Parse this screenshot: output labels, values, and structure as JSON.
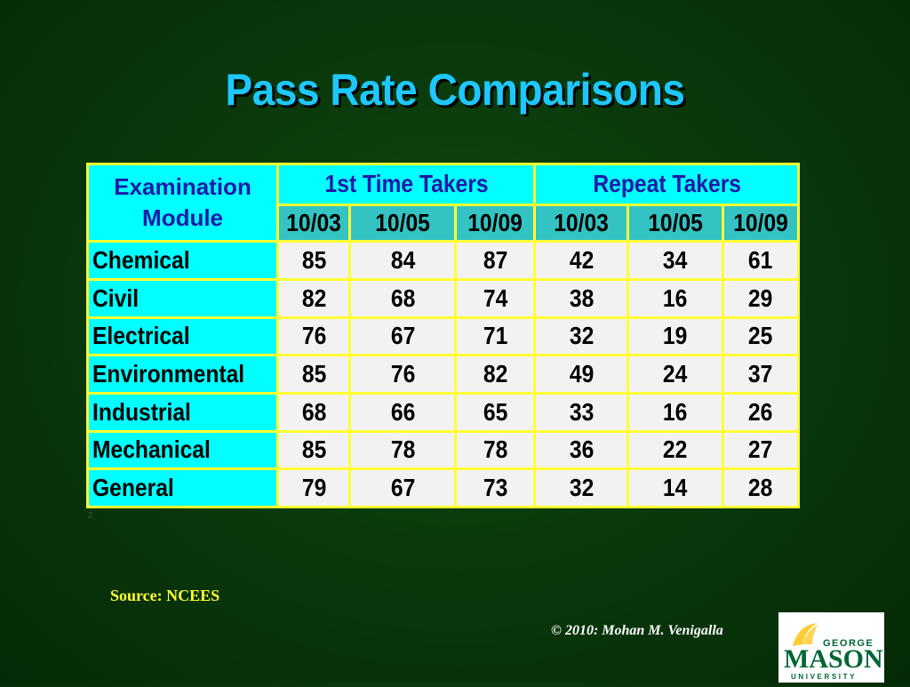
{
  "title": "Pass Rate Comparisons",
  "table": {
    "module_header": "Examination Module",
    "group_headers": [
      "1st Time Takers",
      "Repeat Takers"
    ],
    "date_headers": [
      "10/03",
      "10/05",
      "10/09",
      "10/03",
      "10/05",
      "10/09"
    ],
    "rows": [
      {
        "module": "Chemical",
        "values": [
          "85",
          "84",
          "87",
          "42",
          "34",
          "61"
        ]
      },
      {
        "module": "Civil",
        "values": [
          "82",
          "68",
          "74",
          "38",
          "16",
          "29"
        ]
      },
      {
        "module": "Electrical",
        "values": [
          "76",
          "67",
          "71",
          "32",
          "19",
          "25"
        ]
      },
      {
        "module": "Environmental",
        "values": [
          "85",
          "76",
          "82",
          "49",
          "24",
          "37"
        ]
      },
      {
        "module": "Industrial",
        "values": [
          "68",
          "66",
          "65",
          "33",
          "16",
          "26"
        ]
      },
      {
        "module": "Mechanical",
        "values": [
          "85",
          "78",
          "78",
          "36",
          "22",
          "27"
        ]
      },
      {
        "module": "General",
        "values": [
          "79",
          "67",
          "73",
          "32",
          "14",
          "28"
        ]
      }
    ]
  },
  "footnote": "2",
  "source": "Source: NCEES",
  "copyright": "© 2010: Mohan M. Venigalla",
  "logo": {
    "top_text": "GEORGE",
    "name_text": "MASON",
    "bottom_text": "UNIVERSITY",
    "green": "#006633",
    "gold": "#ffcc33"
  },
  "colors": {
    "title": "#1ec8ff",
    "table_border": "#ffff33",
    "header_fill": "#00ffff",
    "subheader_fill": "#33c3c3",
    "cell_fill": "#f2f2f2",
    "header_text": "#1d1aa8"
  }
}
